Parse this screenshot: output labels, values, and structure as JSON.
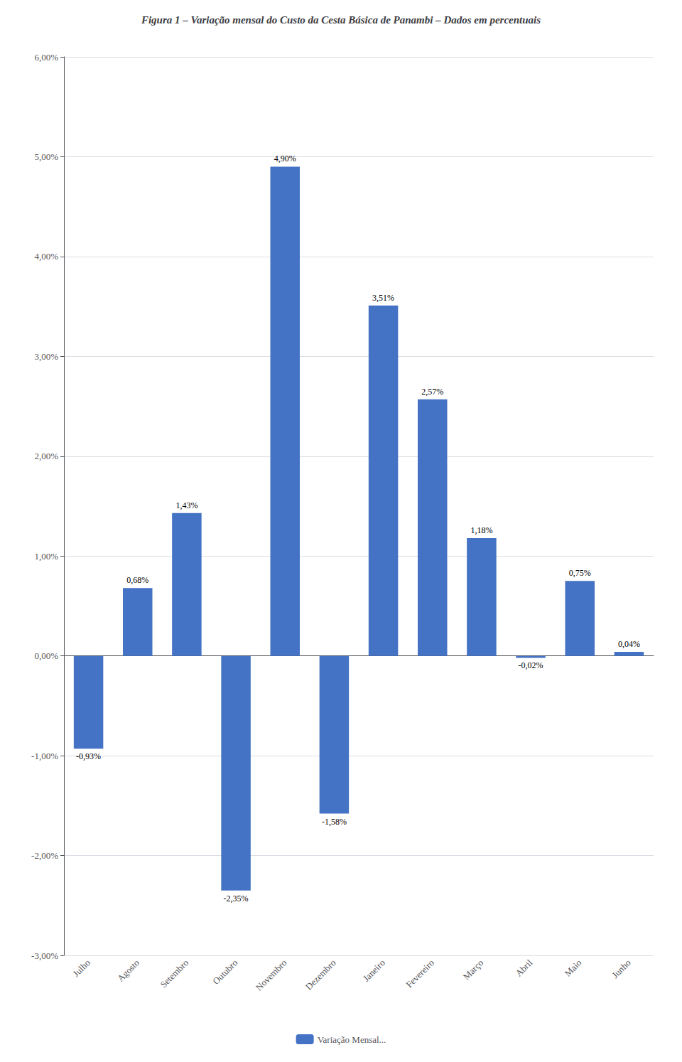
{
  "chart_data": {
    "type": "bar",
    "title": "Figura 1 – Variação mensal do Custo da Cesta Básica de Panambi – Dados em percentuais",
    "categories": [
      "Julho",
      "Agosto",
      "Setembro",
      "Outubro",
      "Novembro",
      "Dezembro",
      "Janeiro",
      "Fevereiro",
      "Março",
      "Abril",
      "Maio",
      "Junho"
    ],
    "series": [
      {
        "name": "Variação Mensal...",
        "color": "#4472C4",
        "values": [
          -0.93,
          0.68,
          1.43,
          -2.35,
          4.9,
          -1.58,
          3.51,
          2.57,
          1.18,
          -0.02,
          0.75,
          0.04
        ],
        "value_labels": [
          "-0,93%",
          "0,68%",
          "1,43%",
          "-2,35%",
          "4,90%",
          "-1,58%",
          "3,51%",
          "2,57%",
          "1,18%",
          "-0,02%",
          "0,75%",
          "0,04%"
        ]
      }
    ],
    "ylim": [
      -3.0,
      6.0
    ],
    "yticks": [
      {
        "value": -3.0,
        "label": "-3,00%"
      },
      {
        "value": -2.0,
        "label": "-2,00%"
      },
      {
        "value": -1.0,
        "label": "-1,00%"
      },
      {
        "value": 0.0,
        "label": "0,00%"
      },
      {
        "value": 1.0,
        "label": "1,00%"
      },
      {
        "value": 2.0,
        "label": "2,00%"
      },
      {
        "value": 3.0,
        "label": "3,00%"
      },
      {
        "value": 4.0,
        "label": "4,00%"
      },
      {
        "value": 5.0,
        "label": "5,00%"
      },
      {
        "value": 6.0,
        "label": "6,00%"
      }
    ],
    "grid": true,
    "legend": "bottom",
    "data_labels": true
  }
}
